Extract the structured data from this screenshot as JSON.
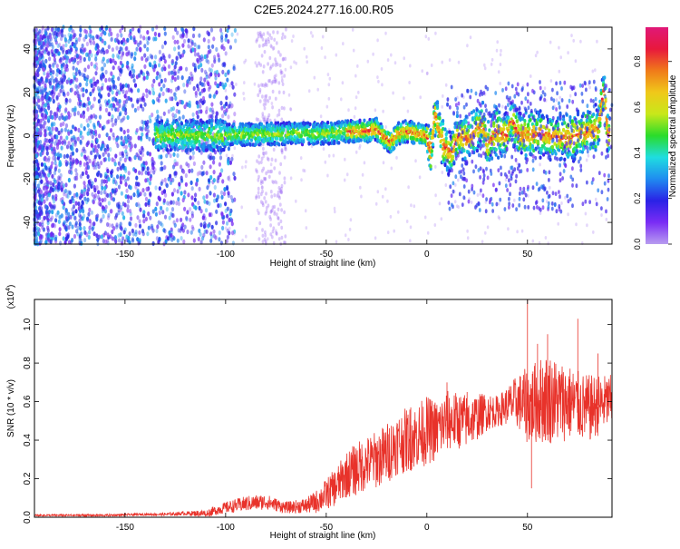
{
  "title": "C2E5.2024.277.16.00.R05",
  "chart_data": [
    {
      "type": "heatmap",
      "panel": "spectrogram",
      "xlabel": "Height of straight line (km)",
      "ylabel": "Frequency (Hz)",
      "xlim": [
        -195,
        92
      ],
      "ylim": [
        -50,
        50
      ],
      "x_ticks": [
        -150,
        -100,
        -50,
        0,
        50
      ],
      "y_ticks": [
        -40,
        -20,
        0,
        20,
        40
      ],
      "colorbar": {
        "label": "Normalized spectral amplitude",
        "range": [
          0.0,
          0.95
        ],
        "ticks": [
          0.0,
          0.2,
          0.4,
          0.6,
          0.8
        ],
        "colormap": [
          "#b89cf0",
          "#7a2cf5",
          "#2a22e6",
          "#1f8cf0",
          "#1fdde0",
          "#2adc2a",
          "#c8e81a",
          "#f0c81a",
          "#f07a1a",
          "#e8183c",
          "#e01878"
        ]
      },
      "central_frequency_track": [
        [
          -130,
          0
        ],
        [
          -110,
          0
        ],
        [
          -90,
          0.5
        ],
        [
          -70,
          1
        ],
        [
          -50,
          1
        ],
        [
          -40,
          2
        ],
        [
          -30,
          2
        ],
        [
          -25,
          3
        ],
        [
          -22,
          0
        ],
        [
          -18,
          -3
        ],
        [
          -14,
          1
        ],
        [
          -10,
          2
        ],
        [
          -5,
          1
        ],
        [
          0,
          0
        ],
        [
          2,
          -8
        ],
        [
          4,
          10
        ],
        [
          8,
          -4
        ],
        [
          12,
          -8
        ],
        [
          16,
          0
        ],
        [
          20,
          -2
        ],
        [
          25,
          3
        ],
        [
          28,
          5
        ],
        [
          30,
          -5
        ],
        [
          34,
          2
        ],
        [
          40,
          0
        ],
        [
          42,
          8
        ],
        [
          46,
          0
        ],
        [
          55,
          1
        ],
        [
          60,
          0
        ],
        [
          70,
          -1
        ],
        [
          80,
          2
        ],
        [
          85,
          3
        ],
        [
          88,
          22
        ],
        [
          90,
          0
        ]
      ]
    },
    {
      "type": "line",
      "panel": "snr",
      "xlabel": "Height of straight line (km)",
      "ylabel": "SNR (10 * v/v)",
      "y_multiplier": "(x10",
      "y_multiplier_exp": "4",
      "y_multiplier_close": ")",
      "xlim": [
        -195,
        92
      ],
      "ylim": [
        0,
        1.13
      ],
      "x_ticks": [
        -150,
        -100,
        -50,
        0,
        50
      ],
      "y_ticks": [
        0.0,
        0.2,
        0.4,
        0.6,
        0.8,
        1.0
      ],
      "color": "#e8322a",
      "series": [
        {
          "x": [
            -195,
            -180,
            -160,
            -140,
            -130,
            -120,
            -110,
            -100,
            -90,
            -80,
            -70,
            -60,
            -55,
            -50,
            -45,
            -40,
            -35,
            -30,
            -25,
            -20,
            -15,
            -10,
            -5,
            0,
            5,
            10,
            15,
            20,
            25,
            30,
            35,
            40,
            45,
            50,
            55,
            60,
            65,
            70,
            75,
            80,
            85,
            90
          ],
          "y": [
            0.01,
            0.01,
            0.01,
            0.015,
            0.015,
            0.02,
            0.02,
            0.05,
            0.07,
            0.08,
            0.05,
            0.06,
            0.08,
            0.12,
            0.16,
            0.22,
            0.25,
            0.28,
            0.3,
            0.33,
            0.38,
            0.4,
            0.42,
            0.45,
            0.45,
            0.5,
            0.5,
            0.5,
            0.52,
            0.55,
            0.55,
            0.58,
            0.6,
            0.58,
            0.6,
            0.62,
            0.6,
            0.6,
            0.58,
            0.56,
            0.58,
            0.6
          ],
          "spread": [
            0.005,
            0.005,
            0.006,
            0.006,
            0.008,
            0.01,
            0.02,
            0.03,
            0.04,
            0.04,
            0.03,
            0.04,
            0.06,
            0.08,
            0.1,
            0.12,
            0.14,
            0.14,
            0.15,
            0.16,
            0.16,
            0.17,
            0.17,
            0.18,
            0.16,
            0.16,
            0.15,
            0.14,
            0.12,
            0.1,
            0.08,
            0.1,
            0.14,
            0.2,
            0.22,
            0.24,
            0.22,
            0.2,
            0.18,
            0.18,
            0.16,
            0.14
          ],
          "peaks": [
            [
              -8,
              0.57
            ],
            [
              10,
              0.7
            ],
            [
              20,
              0.65
            ],
            [
              50,
              1.13
            ],
            [
              52,
              0.15
            ],
            [
              55,
              0.9
            ],
            [
              60,
              0.95
            ],
            [
              75,
              1.03
            ],
            [
              85,
              0.85
            ]
          ]
        }
      ]
    }
  ]
}
